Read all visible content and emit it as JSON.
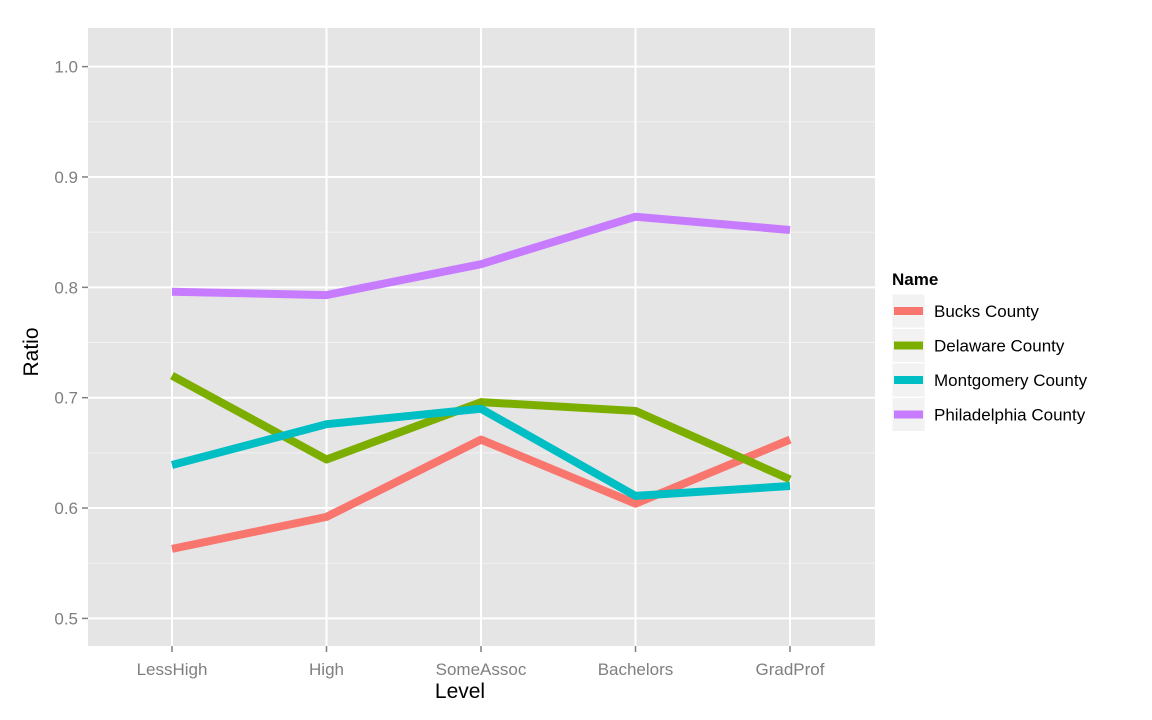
{
  "chart_data": {
    "type": "line",
    "xlabel": "Level",
    "ylabel": "Ratio",
    "categories": [
      "LessHigh",
      "High",
      "SomeAssoc",
      "Bachelors",
      "GradProf"
    ],
    "ylim": [
      0.475,
      1.035
    ],
    "yticks": [
      0.5,
      0.6,
      0.7,
      0.8,
      0.9,
      1.0
    ],
    "ytick_labels": [
      "0.5",
      "0.6",
      "0.7",
      "0.8",
      "0.9",
      "1.0"
    ],
    "grid": true,
    "legend": {
      "title": "Name",
      "position": "right"
    },
    "series": [
      {
        "name": "Bucks County",
        "color": "#F8766D",
        "values": [
          0.563,
          0.592,
          0.662,
          0.604,
          0.662
        ]
      },
      {
        "name": "Delaware County",
        "color": "#7CAE00",
        "values": [
          0.72,
          0.644,
          0.696,
          0.688,
          0.626
        ]
      },
      {
        "name": "Montgomery County",
        "color": "#00BFC4",
        "values": [
          0.639,
          0.676,
          0.69,
          0.611,
          0.62
        ]
      },
      {
        "name": "Philadelphia County",
        "color": "#C77CFF",
        "values": [
          0.796,
          0.793,
          0.821,
          0.864,
          0.852
        ]
      }
    ]
  }
}
